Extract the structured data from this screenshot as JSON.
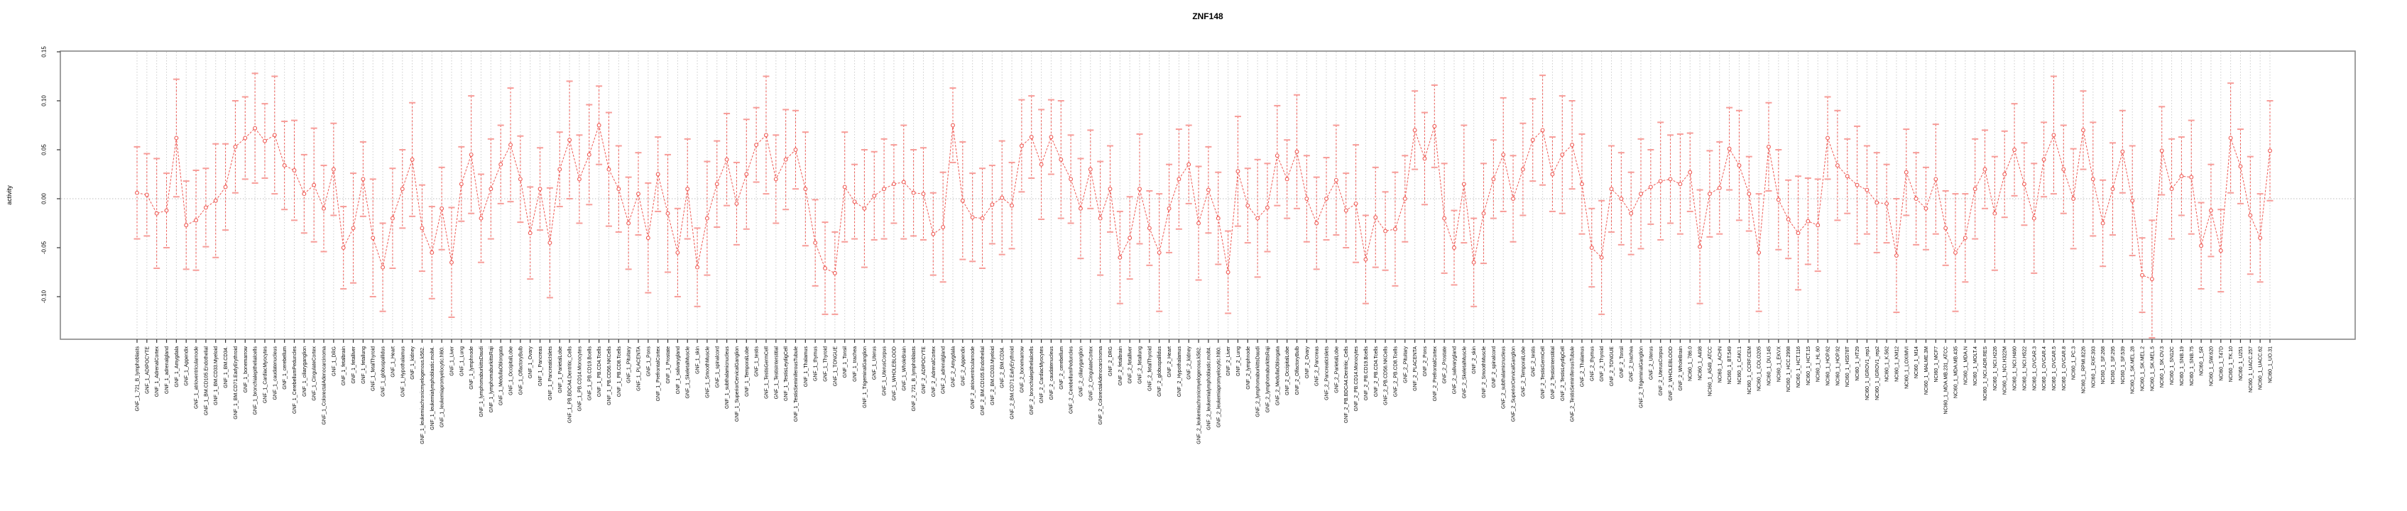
{
  "figure": {
    "title": "ZNF148",
    "background": "#ffffff"
  },
  "chart_data": {
    "type": "line",
    "subtype": "point-with-error-bars",
    "title": "ZNF148",
    "xlabel": "",
    "ylabel": "activity",
    "ylim": [
      -0.145,
      0.155
    ],
    "yticks": [
      "0.15",
      "0.10",
      "0.05",
      "0.00",
      "-0.05",
      "-0.10"
    ],
    "ytick_values": [
      0.15,
      0.1,
      0.05,
      0.0,
      -0.05,
      -0.1
    ],
    "grid": "dotted vertical gridline at every category; dotted horizontal line at y=0",
    "legend": "none",
    "colors": {
      "series": "#ef5a54",
      "error_cap": "#f79d99",
      "gridline": "#cccccc",
      "zero_line": "#bbbbbb",
      "frame": "#888888",
      "tick": "#333333",
      "text": "#000000"
    },
    "categories": [
      "GNF_1_721_B_lymphoblasts",
      "GNF_1_ADIPOCYTE",
      "GNF_1_AdrenalCortex",
      "GNF_1_adrenalgland",
      "GNF_1_Amygdala",
      "GNF_1_Appendix",
      "GNF_1_atrioventricularnode",
      "GNF_1_BM.CD105.Endothelial",
      "GNF_1_BM.CD33.Myeloid",
      "GNF_1_BM.CD34.",
      "GNF_1_BM.CD71.EarlyErythroid",
      "GNF_1_bonemarrow",
      "GNF_1_bronchialepithelialcells",
      "GNF_1_CardiacMyocytes",
      "GNF_1_caudatenucleus",
      "GNF_1_cerebellum",
      "GNF_1_CerebellumPeduncles",
      "GNF_1_ciliaryganglion",
      "GNF_1_CingulateCortex",
      "GNF_1_ColorectalAdenocarcinoma",
      "GNF_1_DRG",
      "GNF_1_fetalbrain",
      "GNF_1_fetalliver",
      "GNF_1_fetallung",
      "GNF_1_fetalThyroid",
      "GNF_1_globuspallidus",
      "GNF_1_Heart",
      "GNF_1_Hypothalamus",
      "GNF_1_kidney",
      "GNF_1_leukemiachronicmyelogenous.k562.",
      "GNF_1_leukemialymphoblastic.molt4.",
      "GNF_1_leukemiapromyelocytic.hl60.",
      "GNF_1_Liver",
      "GNF_1_Lung",
      "GNF_1_lymphnode",
      "GNF_1_lymphomaburkittsDaudi",
      "GNF_1_lymphomaburkittsRaji",
      "GNF_1_MedullaOblongata",
      "GNF_1_OccipitalLobe",
      "GNF_1_OlfactoryBulb",
      "GNF_1_Ovary",
      "GNF_1_Pancreas",
      "GNF_1_PancreaticIslets",
      "GNF_1_ParietalLobe",
      "GNF_1_PB.BDCA4.Dentritic_Cells",
      "GNF_1_PB.CD14.Monocytes",
      "GNF_1_PB.CD19.Bcells",
      "GNF_1_PB.CD4.Tcells",
      "GNF_1_PB.CD56.NKCells",
      "GNF_1_PB.CD8.Tcells",
      "GNF_1_Pituitary",
      "GNF_1_PLACENTA",
      "GNF_1_Pons",
      "GNF_1_PrefrontalCortex",
      "GNF_1_Prostate",
      "GNF_1_salivarygland",
      "GNF_1_SkeletalMuscle",
      "GNF_1_skin",
      "GNF_1_SmoothMuscle",
      "GNF_1_spinalcord",
      "GNF_1_subthalamicnucleus",
      "GNF_1_SuperiorCervicalGanglion",
      "GNF_1_TemporalLobe",
      "GNF_1_testis",
      "GNF_1_TestisGermCell",
      "GNF_1_TestisInterstitial",
      "GNF_1_TestisLeydigCell",
      "GNF_1_TestisSeminiferousTubule",
      "GNF_1_Thalamus",
      "GNF_1_thymus",
      "GNF_1_Thyroid",
      "GNF_1_TONGUE",
      "GNF_1_Tonsil",
      "GNF_1_trachea",
      "GNF_1_TrigeminalGanglion",
      "GNF_1_Uterus",
      "GNF_1_UterusCorpus",
      "GNF_1_WHOLEBLOOD",
      "GNF_1_WholeBrain",
      "GNF_2_721_B_lymphoblasts",
      "GNF_2_ADIPOCYTE",
      "GNF_2_AdrenalCortex",
      "GNF_2_adrenalgland",
      "GNF_2_Amygdala",
      "GNF_2_Appendix",
      "GNF_2_atrioventricularnode",
      "GNF_2_BM.CD105.Endothelial",
      "GNF_2_BM.CD33.Myeloid",
      "GNF_2_BM.CD34.",
      "GNF_2_BM.CD71.EarlyErythroid",
      "GNF_2_bonemarrow",
      "GNF_2_bronchialepithelialcells",
      "GNF_2_CardiacMyocytes",
      "GNF_2_caudatenucleus",
      "GNF_2_cerebellum",
      "GNF_2_CerebellumPeduncles",
      "GNF_2_ciliaryganglion",
      "GNF_2_CingulateCortex",
      "GNF_2_ColorectalAdenocarcinoma",
      "GNF_2_DRG",
      "GNF_2_fetalbrain",
      "GNF_2_fetalliver",
      "GNF_2_fetallung",
      "GNF_2_fetalThyroid",
      "GNF_2_globuspallidus",
      "GNF_2_Heart",
      "GNF_2_Hypothalamus",
      "GNF_2_kidney",
      "GNF_2_leukemiachronicmyelogenous.k562.",
      "GNF_2_leukemialymphoblastic.molt4.",
      "GNF_2_leukemiapromyelocytic.hl60.",
      "GNF_2_Liver",
      "GNF_2_Lung",
      "GNF_2_lymphnode",
      "GNF_2_lymphomaburkittsDaudi",
      "GNF_2_lymphomaburkittsRaji",
      "GNF_2_MedullaOblongata",
      "GNF_2_OccipitalLobe",
      "GNF_2_OlfactoryBulb",
      "GNF_2_Ovary",
      "GNF_2_Pancreas",
      "GNF_2_PancreaticIslets",
      "GNF_2_ParietalLobe",
      "GNF_2_PB.BDCA4.Dentritic_Cells",
      "GNF_2_PB.CD14.Monocytes",
      "GNF_2_PB.CD19.Bcells",
      "GNF_2_PB.CD4.Tcells",
      "GNF_2_PB.CD56.NKCells",
      "GNF_2_PB.CD8.Tcells",
      "GNF_2_Pituitary",
      "GNF_2_PLACENTA",
      "GNF_2_Pons",
      "GNF_2_PrefrontalCortex",
      "GNF_2_Prostate",
      "GNF_2_salivarygland",
      "GNF_2_SkeletalMuscle",
      "GNF_2_skin",
      "GNF_2_SmoothMuscle",
      "GNF_2_spinalcord",
      "GNF_2_subthalamicnucleus",
      "GNF_2_SuperiorCervicalGanglion",
      "GNF_2_TemporalLobe",
      "GNF_2_testis",
      "GNF_2_TestisGermCell",
      "GNF_2_TestisInterstitial",
      "GNF_2_TestisLeydigCell",
      "GNF_2_TestisSeminiferousTubule",
      "GNF_2_Thalamus",
      "GNF_2_thymus",
      "GNF_2_Thyroid",
      "GNF_2_TONGUE",
      "GNF_2_Tonsil",
      "GNF_2_trachea",
      "GNF_2_TrigeminalGanglion",
      "GNF_2_Uterus",
      "GNF_2_UterusCorpus",
      "GNF_2_WHOLEBLOOD",
      "GNF_2_WholeBrain",
      "NCI60_1_786.0",
      "NCI60_1_A498",
      "NCI60_1_A549_ATCC",
      "NCI60_1_ACHN",
      "NCI60_1_BT.549",
      "NCI60_1_CAKI.1",
      "NCI60_1_CCRF.CEM",
      "NCI60_1_COLO205",
      "NCI60_1_DU.145",
      "NCI60_1_EKVX",
      "NCI60_1_HCC.2998",
      "NCI60_1_HCT.116",
      "NCI60_1_HCT.15",
      "NCI60_1_HL.60",
      "NCI60_1_HOP.62",
      "NCI60_1_HOP.92",
      "NCI60_1_HS578T",
      "NCI60_1_HT29",
      "NCI60_1_IGROV1_rep1",
      "NCI60_1_IGROV1_rep2",
      "NCI60_1_K.562",
      "NCI60_1_KM12",
      "NCI60_1_LOXIMVI",
      "NCI60_1_M14",
      "NCI60_1_MALME.3M",
      "NCI60_1_MCF7",
      "NCI60_1_MDA.MB.231_ATCC",
      "NCI60_1_MDA.MB.435",
      "NCI60_1_MDA.N",
      "NCI60_1_MOLT.4",
      "NCI60_1_NCI.ADR.RES",
      "NCI60_1_NCI.H226",
      "NCI60_1_NCI.H322M",
      "NCI60_1_NCI.H460",
      "NCI60_1_NCI.H522",
      "NCI60_1_OVCAR.3",
      "NCI60_1_OVCAR.4",
      "NCI60_1_OVCAR.5",
      "NCI60_1_OVCAR.8",
      "NCI60_1_PC.3",
      "NCI60_1_RPMI.8226",
      "NCI60_1_RXF.393",
      "NCI60_1_SF.268",
      "NCI60_1_SF.295",
      "NCI60_1_SF.539",
      "NCI60_1_SK.MEL.28",
      "NCI60_1_SK.MEL.2",
      "NCI60_1_SK.MEL.5",
      "NCI60_1_SK.OV.3",
      "NCI60_1_SN12C",
      "NCI60_1_SNB.19",
      "NCI60_1_SNB.75",
      "NCI60_1_SR",
      "NCI60_1_SW.620",
      "NCI60_1_T47D",
      "NCI60_1_TK.10",
      "NCI60_1_U251",
      "NCI60_1_UACC.257",
      "NCI60_1_UACC.62",
      "NCI60_1_UO.31"
    ],
    "values": [
      0.006,
      0.004,
      -0.015,
      -0.012,
      0.062,
      -0.027,
      -0.022,
      -0.009,
      -0.002,
      0.012,
      0.053,
      0.062,
      0.072,
      0.059,
      0.065,
      0.034,
      0.029,
      0.005,
      0.014,
      -0.01,
      0.03,
      -0.05,
      -0.03,
      0.02,
      -0.04,
      -0.07,
      -0.02,
      0.01,
      0.04,
      -0.03,
      -0.055,
      -0.01,
      -0.065,
      0.015,
      0.045,
      -0.02,
      0.01,
      0.035,
      0.055,
      0.02,
      -0.035,
      0.01,
      -0.045,
      0.03,
      0.06,
      0.02,
      0.045,
      0.075,
      0.03,
      0.01,
      -0.025,
      0.005,
      -0.04,
      0.025,
      -0.015,
      -0.055,
      0.01,
      -0.07,
      -0.02,
      0.015,
      0.04,
      -0.005,
      0.025,
      0.055,
      0.065,
      0.02,
      0.04,
      0.05,
      0.01,
      -0.045,
      -0.071,
      -0.076,
      0.012,
      -0.003,
      -0.01,
      0.003,
      0.01,
      0.015,
      0.017,
      0.006,
      0.005,
      -0.036,
      -0.029,
      0.075,
      -0.002,
      -0.019,
      -0.02,
      -0.006,
      0.001,
      -0.007,
      0.054,
      0.063,
      0.035,
      0.063,
      0.04,
      0.02,
      -0.01,
      0.03,
      -0.02,
      0.01,
      -0.06,
      -0.04,
      0.01,
      -0.03,
      -0.055,
      -0.01,
      0.02,
      0.035,
      -0.025,
      0.009,
      -0.02,
      -0.075,
      0.028,
      -0.007,
      -0.02,
      -0.009,
      0.044,
      0.02,
      0.048,
      0.0,
      -0.025,
      0.0,
      0.019,
      -0.012,
      -0.005,
      -0.062,
      -0.019,
      -0.033,
      -0.031,
      0.0,
      0.07,
      0.041,
      0.074,
      -0.02,
      -0.05,
      0.015,
      -0.065,
      -0.015,
      0.02,
      0.045,
      0.0,
      0.03,
      0.06,
      0.07,
      0.025,
      0.045,
      0.055,
      0.015,
      -0.05,
      -0.06,
      0.01,
      0.0,
      -0.015,
      0.005,
      0.012,
      0.018,
      0.02,
      0.015,
      0.027,
      -0.049,
      0.005,
      0.011,
      0.051,
      0.034,
      0.005,
      -0.055,
      0.053,
      -0.001,
      -0.021,
      -0.035,
      -0.023,
      -0.027,
      0.062,
      0.034,
      0.023,
      0.014,
      0.009,
      -0.004,
      -0.005,
      -0.058,
      0.027,
      0.0,
      -0.01,
      0.02,
      -0.03,
      -0.055,
      -0.04,
      0.01,
      0.03,
      -0.015,
      0.025,
      0.05,
      0.015,
      -0.02,
      0.04,
      0.065,
      0.03,
      0.0,
      0.07,
      0.02,
      -0.025,
      0.01,
      0.048,
      -0.002,
      -0.078,
      -0.082,
      0.049,
      0.01,
      0.023,
      0.022,
      -0.048,
      -0.012,
      -0.053,
      0.062,
      0.033,
      -0.017,
      -0.04,
      0.049
    ],
    "errors": [
      0.047,
      0.042,
      0.056,
      0.038,
      0.06,
      0.045,
      0.051,
      0.04,
      0.058,
      0.044,
      0.047,
      0.042,
      0.056,
      0.038,
      0.06,
      0.045,
      0.051,
      0.04,
      0.058,
      0.044,
      0.047,
      0.042,
      0.056,
      0.038,
      0.06,
      0.045,
      0.051,
      0.04,
      0.058,
      0.044,
      0.047,
      0.042,
      0.056,
      0.038,
      0.06,
      0.045,
      0.051,
      0.04,
      0.058,
      0.044,
      0.047,
      0.042,
      0.056,
      0.038,
      0.06,
      0.045,
      0.051,
      0.04,
      0.058,
      0.044,
      0.047,
      0.042,
      0.056,
      0.038,
      0.06,
      0.045,
      0.051,
      0.04,
      0.058,
      0.044,
      0.047,
      0.042,
      0.056,
      0.038,
      0.06,
      0.045,
      0.051,
      0.04,
      0.058,
      0.044,
      0.047,
      0.042,
      0.056,
      0.038,
      0.06,
      0.045,
      0.051,
      0.04,
      0.058,
      0.044,
      0.047,
      0.042,
      0.056,
      0.038,
      0.06,
      0.045,
      0.051,
      0.04,
      0.058,
      0.044,
      0.047,
      0.042,
      0.056,
      0.038,
      0.06,
      0.045,
      0.051,
      0.04,
      0.058,
      0.044,
      0.047,
      0.042,
      0.056,
      0.038,
      0.06,
      0.045,
      0.051,
      0.04,
      0.058,
      0.044,
      0.047,
      0.042,
      0.056,
      0.038,
      0.06,
      0.045,
      0.051,
      0.04,
      0.058,
      0.044,
      0.047,
      0.042,
      0.056,
      0.038,
      0.06,
      0.045,
      0.051,
      0.04,
      0.058,
      0.044,
      0.04,
      0.047,
      0.042,
      0.056,
      0.038,
      0.06,
      0.045,
      0.051,
      0.04,
      0.058,
      0.044,
      0.047,
      0.042,
      0.056,
      0.038,
      0.06,
      0.045,
      0.051,
      0.04,
      0.058,
      0.044,
      0.047,
      0.042,
      0.056,
      0.038,
      0.06,
      0.045,
      0.051,
      0.04,
      0.058,
      0.044,
      0.047,
      0.042,
      0.056,
      0.038,
      0.06,
      0.045,
      0.051,
      0.04,
      0.058,
      0.044,
      0.047,
      0.042,
      0.056,
      0.038,
      0.06,
      0.045,
      0.051,
      0.04,
      0.058,
      0.044,
      0.047,
      0.042,
      0.056,
      0.038,
      0.06,
      0.045,
      0.051,
      0.04,
      0.058,
      0.044,
      0.047,
      0.042,
      0.056,
      0.038,
      0.06,
      0.045,
      0.051,
      0.04,
      0.058,
      0.044,
      0.047,
      0.042,
      0.056,
      0.038,
      0.06,
      0.045,
      0.051,
      0.04,
      0.058,
      0.044,
      0.047,
      0.042,
      0.056,
      0.038,
      0.06,
      0.045,
      0.051
    ]
  },
  "layout_text": {
    "note": "single panel R-style plot, open-circle markers with dashed red error bars on white background"
  }
}
